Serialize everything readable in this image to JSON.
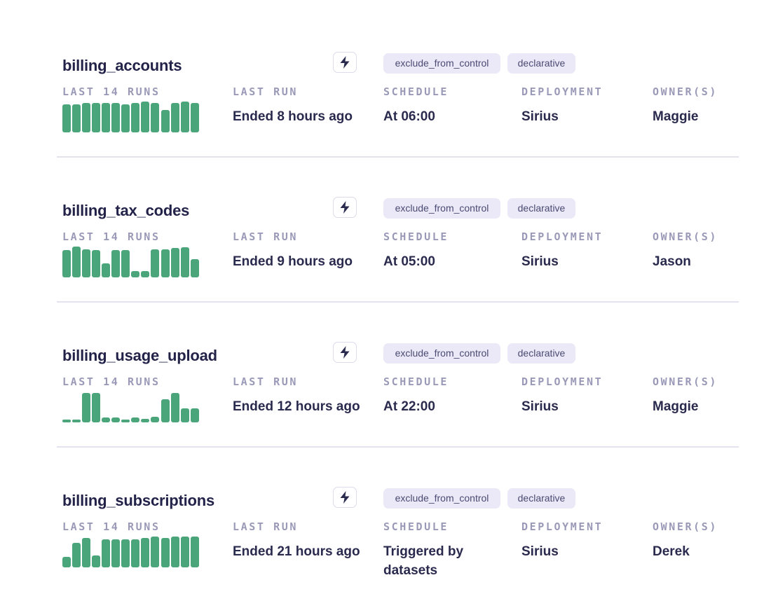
{
  "labels": {
    "last_runs": "LAST 14 RUNS",
    "last_run": "LAST RUN",
    "schedule": "SCHEDULE",
    "deployment": "DEPLOYMENT",
    "owners": "OWNER(S)"
  },
  "colors": {
    "success_bar": "#4aa57a",
    "tag_bg": "#ebe9f8",
    "title": "#23234a",
    "label": "#9a9ab8",
    "divider": "#e3e3f0"
  },
  "action_icon": "lightning-bolt-icon",
  "pipelines": [
    {
      "name": "billing_accounts",
      "tags": [
        "exclude_from_control",
        "declarative"
      ],
      "last_run": "Ended 8 hours ago",
      "schedule": "At 06:00",
      "deployment": "Sirius",
      "owners": "Maggie",
      "runs": [
        0.9,
        0.9,
        0.95,
        0.95,
        0.95,
        0.95,
        0.9,
        0.95,
        1.0,
        0.95,
        0.72,
        0.95,
        1.0,
        0.95
      ]
    },
    {
      "name": "billing_tax_codes",
      "tags": [
        "exclude_from_control",
        "declarative"
      ],
      "last_run": "Ended 9 hours ago",
      "schedule": "At 05:00",
      "deployment": "Sirius",
      "owners": "Jason",
      "runs": [
        0.88,
        1.0,
        0.9,
        0.88,
        0.45,
        0.88,
        0.88,
        0.2,
        0.2,
        0.9,
        0.9,
        0.95,
        0.98,
        0.6
      ]
    },
    {
      "name": "billing_usage_upload",
      "tags": [
        "exclude_from_control",
        "declarative"
      ],
      "last_run": "Ended 12 hours ago",
      "schedule": "At 22:00",
      "deployment": "Sirius",
      "owners": "Maggie",
      "runs": [
        0.1,
        0.1,
        0.95,
        0.95,
        0.15,
        0.15,
        0.1,
        0.15,
        0.12,
        0.18,
        0.75,
        0.95,
        0.45,
        0.45
      ]
    },
    {
      "name": "billing_subscriptions",
      "tags": [
        "exclude_from_control",
        "declarative"
      ],
      "last_run": "Ended 21 hours ago",
      "schedule": "Triggered by datasets",
      "deployment": "Sirius",
      "owners": "Derek",
      "runs": [
        0.35,
        0.8,
        0.95,
        0.38,
        0.92,
        0.9,
        0.9,
        0.9,
        0.95,
        1.0,
        0.95,
        1.0,
        1.0,
        1.0
      ]
    }
  ]
}
